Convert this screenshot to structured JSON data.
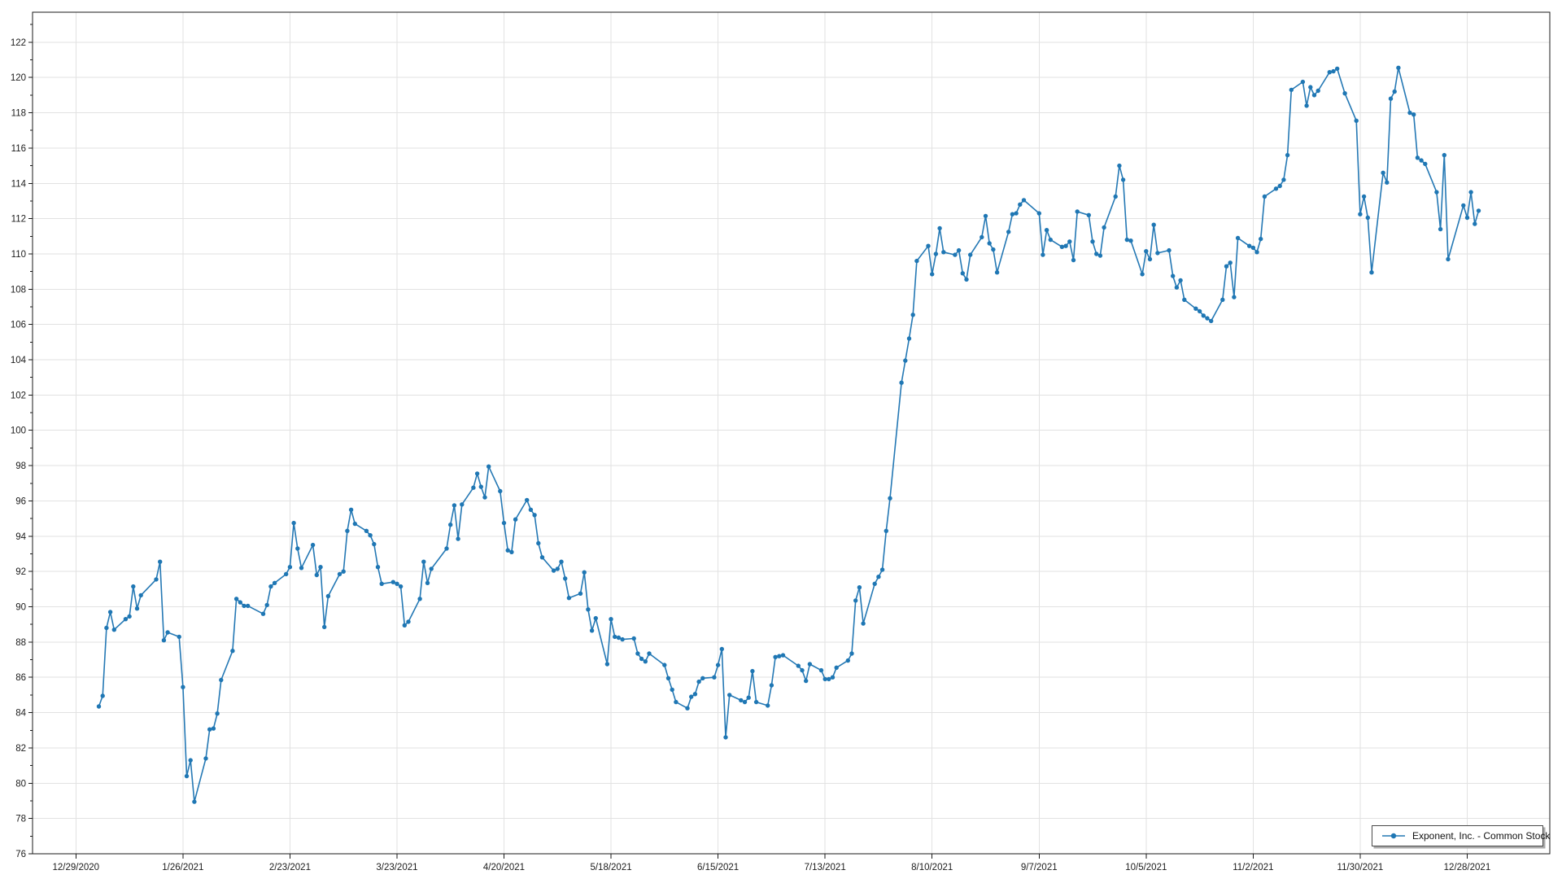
{
  "chart_data": {
    "type": "line",
    "title": "",
    "legend": {
      "label": "Exponent, Inc. - Common Stock",
      "position": "bottom-right"
    },
    "x_axis": {
      "tick_interval_days": 28,
      "tick_labels": [
        "12/29/2020",
        "1/26/2021",
        "2/23/2021",
        "3/23/2021",
        "4/20/2021",
        "5/18/2021",
        "6/15/2021",
        "7/13/2021",
        "8/10/2021",
        "9/7/2021",
        "10/5/2021",
        "11/2/2021",
        "11/30/2021",
        "12/28/2021"
      ]
    },
    "y_axis": {
      "min": 76,
      "max": 123.7,
      "major_step": 2,
      "minor_step": 1,
      "tick_labels": [
        "76",
        "78",
        "80",
        "82",
        "84",
        "86",
        "88",
        "90",
        "92",
        "94",
        "96",
        "98",
        "100",
        "102",
        "104",
        "106",
        "108",
        "110",
        "112",
        "114",
        "116",
        "118",
        "120",
        "122"
      ]
    },
    "grid": true,
    "series": [
      {
        "name": "Exponent, Inc. - Common Stock",
        "color": "#2478b4",
        "marker": "circle",
        "points": [
          [
            "1/4/2021",
            84.35
          ],
          [
            "1/5/2021",
            84.95
          ],
          [
            "1/6/2021",
            88.8
          ],
          [
            "1/7/2021",
            89.7
          ],
          [
            "1/8/2021",
            88.7
          ],
          [
            "1/11/2021",
            89.3
          ],
          [
            "1/12/2021",
            89.45
          ],
          [
            "1/13/2021",
            91.15
          ],
          [
            "1/14/2021",
            89.9
          ],
          [
            "1/15/2021",
            90.65
          ],
          [
            "1/19/2021",
            91.55
          ],
          [
            "1/20/2021",
            92.55
          ],
          [
            "1/21/2021",
            88.1
          ],
          [
            "1/22/2021",
            88.55
          ],
          [
            "1/25/2021",
            88.3
          ],
          [
            "1/26/2021",
            85.45
          ],
          [
            "1/27/2021",
            80.4
          ],
          [
            "1/28/2021",
            81.3
          ],
          [
            "1/29/2021",
            78.95
          ],
          [
            "2/1/2021",
            81.4
          ],
          [
            "2/2/2021",
            83.05
          ],
          [
            "2/3/2021",
            83.1
          ],
          [
            "2/4/2021",
            83.95
          ],
          [
            "2/5/2021",
            85.85
          ],
          [
            "2/8/2021",
            87.5
          ],
          [
            "2/9/2021",
            90.45
          ],
          [
            "2/10/2021",
            90.25
          ],
          [
            "2/11/2021",
            90.05
          ],
          [
            "2/12/2021",
            90.05
          ],
          [
            "2/16/2021",
            89.6
          ],
          [
            "2/17/2021",
            90.1
          ],
          [
            "2/18/2021",
            91.15
          ],
          [
            "2/19/2021",
            91.35
          ],
          [
            "2/22/2021",
            91.85
          ],
          [
            "2/23/2021",
            92.25
          ],
          [
            "2/24/2021",
            94.75
          ],
          [
            "2/25/2021",
            93.3
          ],
          [
            "2/26/2021",
            92.2
          ],
          [
            "3/1/2021",
            93.5
          ],
          [
            "3/2/2021",
            91.8
          ],
          [
            "3/3/2021",
            92.25
          ],
          [
            "3/4/2021",
            88.85
          ],
          [
            "3/5/2021",
            90.6
          ],
          [
            "3/8/2021",
            91.85
          ],
          [
            "3/9/2021",
            92.0
          ],
          [
            "3/10/2021",
            94.3
          ],
          [
            "3/11/2021",
            95.5
          ],
          [
            "3/12/2021",
            94.7
          ],
          [
            "3/15/2021",
            94.3
          ],
          [
            "3/16/2021",
            94.05
          ],
          [
            "3/17/2021",
            93.55
          ],
          [
            "3/18/2021",
            92.25
          ],
          [
            "3/19/2021",
            91.3
          ],
          [
            "3/22/2021",
            91.4
          ],
          [
            "3/23/2021",
            91.3
          ],
          [
            "3/24/2021",
            91.15
          ],
          [
            "3/25/2021",
            88.95
          ],
          [
            "3/26/2021",
            89.15
          ],
          [
            "3/29/2021",
            90.45
          ],
          [
            "3/30/2021",
            92.55
          ],
          [
            "3/31/2021",
            91.35
          ],
          [
            "4/1/2021",
            92.15
          ],
          [
            "4/5/2021",
            93.3
          ],
          [
            "4/6/2021",
            94.65
          ],
          [
            "4/7/2021",
            95.75
          ],
          [
            "4/8/2021",
            93.85
          ],
          [
            "4/9/2021",
            95.8
          ],
          [
            "4/12/2021",
            96.75
          ],
          [
            "4/13/2021",
            97.55
          ],
          [
            "4/14/2021",
            96.8
          ],
          [
            "4/15/2021",
            96.2
          ],
          [
            "4/16/2021",
            97.95
          ],
          [
            "4/19/2021",
            96.55
          ],
          [
            "4/20/2021",
            94.75
          ],
          [
            "4/21/2021",
            93.2
          ],
          [
            "4/22/2021",
            93.1
          ],
          [
            "4/23/2021",
            94.95
          ],
          [
            "4/26/2021",
            96.05
          ],
          [
            "4/27/2021",
            95.5
          ],
          [
            "4/28/2021",
            95.2
          ],
          [
            "4/29/2021",
            93.6
          ],
          [
            "4/30/2021",
            92.8
          ],
          [
            "5/3/2021",
            92.05
          ],
          [
            "5/4/2021",
            92.15
          ],
          [
            "5/5/2021",
            92.55
          ],
          [
            "5/6/2021",
            91.6
          ],
          [
            "5/7/2021",
            90.5
          ],
          [
            "5/10/2021",
            90.75
          ],
          [
            "5/11/2021",
            91.95
          ],
          [
            "5/12/2021",
            89.85
          ],
          [
            "5/13/2021",
            88.65
          ],
          [
            "5/14/2021",
            89.35
          ],
          [
            "5/17/2021",
            86.75
          ],
          [
            "5/18/2021",
            89.3
          ],
          [
            "5/19/2021",
            88.3
          ],
          [
            "5/20/2021",
            88.25
          ],
          [
            "5/21/2021",
            88.15
          ],
          [
            "5/24/2021",
            88.2
          ],
          [
            "5/25/2021",
            87.35
          ],
          [
            "5/26/2021",
            87.05
          ],
          [
            "5/27/2021",
            86.9
          ],
          [
            "5/28/2021",
            87.35
          ],
          [
            "6/1/2021",
            86.7
          ],
          [
            "6/2/2021",
            85.95
          ],
          [
            "6/3/2021",
            85.3
          ],
          [
            "6/4/2021",
            84.6
          ],
          [
            "6/7/2021",
            84.25
          ],
          [
            "6/8/2021",
            84.9
          ],
          [
            "6/9/2021",
            85.05
          ],
          [
            "6/10/2021",
            85.75
          ],
          [
            "6/11/2021",
            85.95
          ],
          [
            "6/14/2021",
            86.0
          ],
          [
            "6/15/2021",
            86.7
          ],
          [
            "6/16/2021",
            87.6
          ],
          [
            "6/17/2021",
            82.6
          ],
          [
            "6/18/2021",
            85.0
          ],
          [
            "6/21/2021",
            84.7
          ],
          [
            "6/22/2021",
            84.6
          ],
          [
            "6/23/2021",
            84.85
          ],
          [
            "6/24/2021",
            86.35
          ],
          [
            "6/25/2021",
            84.6
          ],
          [
            "6/28/2021",
            84.4
          ],
          [
            "6/29/2021",
            85.55
          ],
          [
            "6/30/2021",
            87.15
          ],
          [
            "7/1/2021",
            87.2
          ],
          [
            "7/2/2021",
            87.25
          ],
          [
            "7/6/2021",
            86.65
          ],
          [
            "7/7/2021",
            86.4
          ],
          [
            "7/8/2021",
            85.8
          ],
          [
            "7/9/2021",
            86.75
          ],
          [
            "7/12/2021",
            86.4
          ],
          [
            "7/13/2021",
            85.9
          ],
          [
            "7/14/2021",
            85.9
          ],
          [
            "7/15/2021",
            86.0
          ],
          [
            "7/16/2021",
            86.55
          ],
          [
            "7/19/2021",
            86.95
          ],
          [
            "7/20/2021",
            87.35
          ],
          [
            "7/21/2021",
            90.35
          ],
          [
            "7/22/2021",
            91.1
          ],
          [
            "7/23/2021",
            89.05
          ],
          [
            "7/26/2021",
            91.3
          ],
          [
            "7/27/2021",
            91.7
          ],
          [
            "7/28/2021",
            92.1
          ],
          [
            "7/29/2021",
            94.3
          ],
          [
            "7/30/2021",
            96.15
          ],
          [
            "8/2/2021",
            102.7
          ],
          [
            "8/3/2021",
            103.95
          ],
          [
            "8/4/2021",
            105.2
          ],
          [
            "8/5/2021",
            106.55
          ],
          [
            "8/6/2021",
            109.6
          ],
          [
            "8/9/2021",
            110.45
          ],
          [
            "8/10/2021",
            108.85
          ],
          [
            "8/11/2021",
            110.0
          ],
          [
            "8/12/2021",
            111.45
          ],
          [
            "8/13/2021",
            110.1
          ],
          [
            "8/16/2021",
            109.95
          ],
          [
            "8/17/2021",
            110.2
          ],
          [
            "8/18/2021",
            108.9
          ],
          [
            "8/19/2021",
            108.55
          ],
          [
            "8/20/2021",
            109.95
          ],
          [
            "8/23/2021",
            110.95
          ],
          [
            "8/24/2021",
            112.15
          ],
          [
            "8/25/2021",
            110.6
          ],
          [
            "8/26/2021",
            110.25
          ],
          [
            "8/27/2021",
            108.95
          ],
          [
            "8/30/2021",
            111.25
          ],
          [
            "8/31/2021",
            112.25
          ],
          [
            "9/1/2021",
            112.3
          ],
          [
            "9/2/2021",
            112.8
          ],
          [
            "9/3/2021",
            113.05
          ],
          [
            "9/7/2021",
            112.3
          ],
          [
            "9/8/2021",
            109.95
          ],
          [
            "9/9/2021",
            111.35
          ],
          [
            "9/10/2021",
            110.8
          ],
          [
            "9/13/2021",
            110.4
          ],
          [
            "9/14/2021",
            110.45
          ],
          [
            "9/15/2021",
            110.7
          ],
          [
            "9/16/2021",
            109.65
          ],
          [
            "9/17/2021",
            112.4
          ],
          [
            "9/20/2021",
            112.2
          ],
          [
            "9/21/2021",
            110.7
          ],
          [
            "9/22/2021",
            110.0
          ],
          [
            "9/23/2021",
            109.9
          ],
          [
            "9/24/2021",
            111.5
          ],
          [
            "9/27/2021",
            113.25
          ],
          [
            "9/28/2021",
            115.0
          ],
          [
            "9/29/2021",
            114.2
          ],
          [
            "9/30/2021",
            110.8
          ],
          [
            "10/1/2021",
            110.75
          ],
          [
            "10/4/2021",
            108.85
          ],
          [
            "10/5/2021",
            110.15
          ],
          [
            "10/6/2021",
            109.7
          ],
          [
            "10/7/2021",
            111.65
          ],
          [
            "10/8/2021",
            110.05
          ],
          [
            "10/11/2021",
            110.2
          ],
          [
            "10/12/2021",
            108.75
          ],
          [
            "10/13/2021",
            108.1
          ],
          [
            "10/14/2021",
            108.5
          ],
          [
            "10/15/2021",
            107.4
          ],
          [
            "10/18/2021",
            106.9
          ],
          [
            "10/19/2021",
            106.75
          ],
          [
            "10/20/2021",
            106.5
          ],
          [
            "10/21/2021",
            106.35
          ],
          [
            "10/22/2021",
            106.2
          ],
          [
            "10/25/2021",
            107.4
          ],
          [
            "10/26/2021",
            109.3
          ],
          [
            "10/27/2021",
            109.5
          ],
          [
            "10/28/2021",
            107.55
          ],
          [
            "10/29/2021",
            110.9
          ],
          [
            "11/1/2021",
            110.45
          ],
          [
            "11/2/2021",
            110.35
          ],
          [
            "11/3/2021",
            110.1
          ],
          [
            "11/4/2021",
            110.85
          ],
          [
            "11/5/2021",
            113.25
          ],
          [
            "11/8/2021",
            113.7
          ],
          [
            "11/9/2021",
            113.85
          ],
          [
            "11/10/2021",
            114.2
          ],
          [
            "11/11/2021",
            115.6
          ],
          [
            "11/12/2021",
            119.3
          ],
          [
            "11/15/2021",
            119.75
          ],
          [
            "11/16/2021",
            118.4
          ],
          [
            "11/17/2021",
            119.45
          ],
          [
            "11/18/2021",
            119.0
          ],
          [
            "11/19/2021",
            119.25
          ],
          [
            "11/22/2021",
            120.3
          ],
          [
            "11/23/2021",
            120.35
          ],
          [
            "11/24/2021",
            120.5
          ],
          [
            "11/26/2021",
            119.1
          ],
          [
            "11/29/2021",
            117.55
          ],
          [
            "11/30/2021",
            112.25
          ],
          [
            "12/1/2021",
            113.25
          ],
          [
            "12/2/2021",
            112.05
          ],
          [
            "12/3/2021",
            108.95
          ],
          [
            "12/6/2021",
            114.6
          ],
          [
            "12/7/2021",
            114.05
          ],
          [
            "12/8/2021",
            118.8
          ],
          [
            "12/9/2021",
            119.2
          ],
          [
            "12/10/2021",
            120.55
          ],
          [
            "12/13/2021",
            118.0
          ],
          [
            "12/14/2021",
            117.9
          ],
          [
            "12/15/2021",
            115.45
          ],
          [
            "12/16/2021",
            115.3
          ],
          [
            "12/17/2021",
            115.1
          ],
          [
            "12/20/2021",
            113.5
          ],
          [
            "12/21/2021",
            111.4
          ],
          [
            "12/22/2021",
            115.6
          ],
          [
            "12/23/2021",
            109.7
          ],
          [
            "12/27/2021",
            112.75
          ],
          [
            "12/28/2021",
            112.05
          ],
          [
            "12/29/2021",
            113.5
          ],
          [
            "12/30/2021",
            111.7
          ],
          [
            "12/31/2021",
            112.45
          ]
        ]
      }
    ]
  },
  "colors": {
    "line": "#2478b4",
    "marker": "#1f77b4",
    "grid": "#e2e2e2",
    "axis": "#1a1a1a",
    "text": "#1c1c1c",
    "background": "#ffffff",
    "legend_border": "#4a4a4a",
    "legend_shadow": "#ababab"
  }
}
